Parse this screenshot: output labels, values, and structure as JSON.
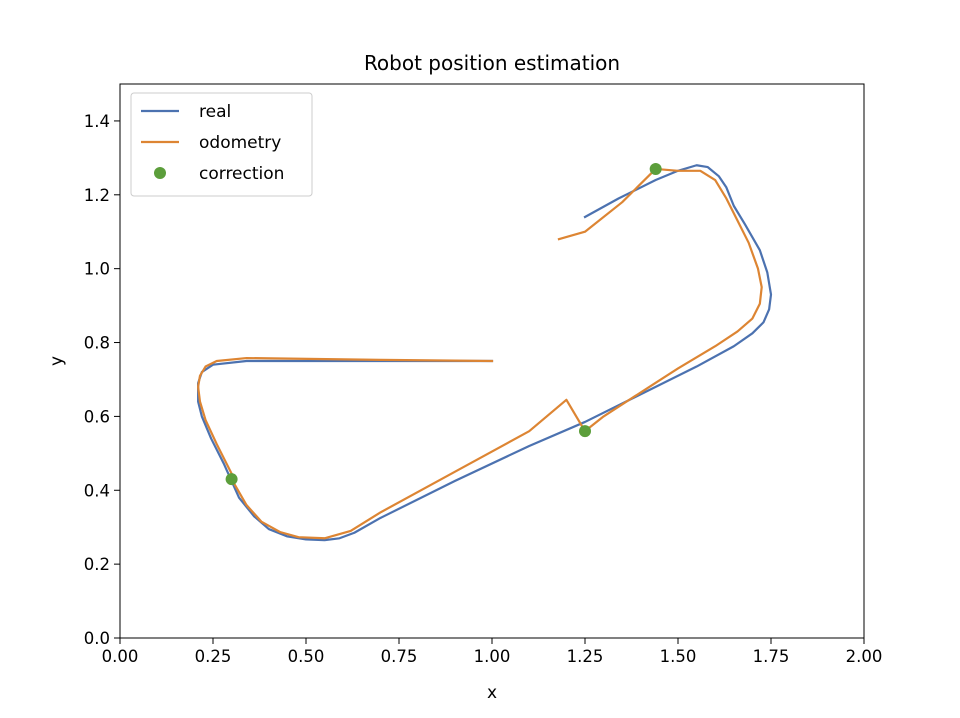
{
  "chart_data": {
    "type": "line",
    "title": "Robot position estimation",
    "xlabel": "x",
    "ylabel": "y",
    "xlim": [
      0,
      2
    ],
    "ylim": [
      0,
      1.5
    ],
    "xticks": [
      0,
      0.25,
      0.5,
      0.75,
      1.0,
      1.25,
      1.5,
      1.75,
      2.0
    ],
    "xtick_labels": [
      "0.00",
      "0.25",
      "0.50",
      "0.75",
      "1.00",
      "1.25",
      "1.50",
      "1.75",
      "2.00"
    ],
    "yticks": [
      0,
      0.2,
      0.4,
      0.6,
      0.8,
      1.0,
      1.2,
      1.4
    ],
    "ytick_labels": [
      "0.0",
      "0.2",
      "0.4",
      "0.6",
      "0.8",
      "1.0",
      "1.2",
      "1.4"
    ],
    "grid": false,
    "legend_position": "top-left",
    "series": [
      {
        "name": "real",
        "kind": "line",
        "color": "#4c72b0",
        "points": [
          [
            1.0,
            0.75
          ],
          [
            0.7,
            0.75
          ],
          [
            0.34,
            0.75
          ],
          [
            0.25,
            0.74
          ],
          [
            0.22,
            0.72
          ],
          [
            0.21,
            0.69
          ],
          [
            0.21,
            0.64
          ],
          [
            0.22,
            0.6
          ],
          [
            0.245,
            0.54
          ],
          [
            0.28,
            0.47
          ],
          [
            0.32,
            0.38
          ],
          [
            0.36,
            0.33
          ],
          [
            0.4,
            0.295
          ],
          [
            0.45,
            0.275
          ],
          [
            0.5,
            0.267
          ],
          [
            0.55,
            0.265
          ],
          [
            0.59,
            0.27
          ],
          [
            0.63,
            0.285
          ],
          [
            0.7,
            0.325
          ],
          [
            0.9,
            0.425
          ],
          [
            1.1,
            0.52
          ],
          [
            1.25,
            0.585
          ],
          [
            1.4,
            0.66
          ],
          [
            1.55,
            0.735
          ],
          [
            1.65,
            0.79
          ],
          [
            1.7,
            0.825
          ],
          [
            1.73,
            0.855
          ],
          [
            1.745,
            0.89
          ],
          [
            1.75,
            0.93
          ],
          [
            1.74,
            0.99
          ],
          [
            1.72,
            1.05
          ],
          [
            1.68,
            1.12
          ],
          [
            1.65,
            1.17
          ],
          [
            1.63,
            1.22
          ],
          [
            1.61,
            1.25
          ],
          [
            1.58,
            1.275
          ],
          [
            1.55,
            1.28
          ],
          [
            1.5,
            1.265
          ],
          [
            1.44,
            1.24
          ],
          [
            1.34,
            1.19
          ],
          [
            1.25,
            1.14
          ]
        ]
      },
      {
        "name": "odometry",
        "kind": "line",
        "color": "#dd8533",
        "points": [
          [
            1.0,
            0.75
          ],
          [
            0.7,
            0.753
          ],
          [
            0.34,
            0.758
          ],
          [
            0.26,
            0.75
          ],
          [
            0.23,
            0.735
          ],
          [
            0.215,
            0.71
          ],
          [
            0.21,
            0.68
          ],
          [
            0.215,
            0.64
          ],
          [
            0.23,
            0.59
          ],
          [
            0.26,
            0.525
          ],
          [
            0.3,
            0.445
          ],
          [
            0.3,
            0.43
          ],
          [
            0.34,
            0.36
          ],
          [
            0.38,
            0.315
          ],
          [
            0.43,
            0.287
          ],
          [
            0.48,
            0.273
          ],
          [
            0.55,
            0.27
          ],
          [
            0.62,
            0.29
          ],
          [
            0.7,
            0.34
          ],
          [
            0.9,
            0.45
          ],
          [
            1.1,
            0.56
          ],
          [
            1.2,
            0.645
          ],
          [
            1.25,
            0.56
          ],
          [
            1.3,
            0.6
          ],
          [
            1.4,
            0.665
          ],
          [
            1.5,
            0.73
          ],
          [
            1.6,
            0.79
          ],
          [
            1.66,
            0.83
          ],
          [
            1.7,
            0.865
          ],
          [
            1.72,
            0.905
          ],
          [
            1.725,
            0.95
          ],
          [
            1.715,
            1.0
          ],
          [
            1.69,
            1.07
          ],
          [
            1.66,
            1.13
          ],
          [
            1.63,
            1.19
          ],
          [
            1.6,
            1.24
          ],
          [
            1.56,
            1.265
          ],
          [
            1.5,
            1.265
          ],
          [
            1.44,
            1.27
          ],
          [
            1.35,
            1.18
          ],
          [
            1.25,
            1.1
          ],
          [
            1.18,
            1.08
          ]
        ]
      },
      {
        "name": "correction",
        "kind": "scatter",
        "color": "#5c9e3b",
        "points": [
          [
            0.3,
            0.43
          ],
          [
            1.25,
            0.56
          ],
          [
            1.44,
            1.27
          ]
        ]
      }
    ]
  }
}
